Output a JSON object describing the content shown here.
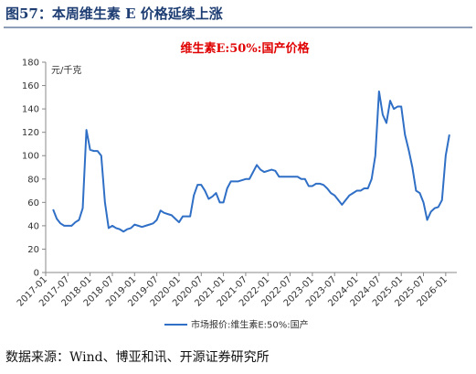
{
  "header": {
    "title": "图57：本周维生素 E 价格延续上涨"
  },
  "chart_data": {
    "type": "line",
    "title": "维生素E:50%:国产价格",
    "y_label": "元/千克",
    "x": [
      "2017-03",
      "2017-04",
      "2017-05",
      "2017-06",
      "2017-07",
      "2017-08",
      "2017-09",
      "2017-10",
      "2017-11",
      "2017-12",
      "2018-01",
      "2018-02",
      "2018-03",
      "2018-04",
      "2018-05",
      "2018-06",
      "2018-07",
      "2018-08",
      "2018-09",
      "2018-10",
      "2018-11",
      "2018-12",
      "2019-01",
      "2019-02",
      "2019-03",
      "2019-04",
      "2019-05",
      "2019-06",
      "2019-07",
      "2019-08",
      "2019-09",
      "2019-10",
      "2019-11",
      "2019-12",
      "2020-01",
      "2020-02",
      "2020-03",
      "2020-04",
      "2020-05",
      "2020-06",
      "2020-07",
      "2020-08",
      "2020-09",
      "2020-10",
      "2020-11",
      "2020-12",
      "2021-01",
      "2021-02",
      "2021-03",
      "2021-04",
      "2021-05",
      "2021-06",
      "2021-07",
      "2021-08",
      "2021-09",
      "2021-10",
      "2021-11",
      "2021-12",
      "2022-01",
      "2022-02",
      "2022-03",
      "2022-04",
      "2022-05",
      "2022-06",
      "2022-07",
      "2022-08",
      "2022-09",
      "2022-10",
      "2022-11",
      "2022-12",
      "2023-01",
      "2023-02",
      "2023-03",
      "2023-04",
      "2023-05",
      "2023-06",
      "2023-07",
      "2023-08",
      "2023-09",
      "2023-10",
      "2023-11",
      "2023-12",
      "2024-01",
      "2024-02",
      "2024-03",
      "2024-04",
      "2024-05",
      "2024-06",
      "2024-07",
      "2024-08",
      "2024-09",
      "2024-10",
      "2024-11",
      "2024-12",
      "2025-01",
      "2025-02",
      "2025-03",
      "2025-04",
      "2025-05",
      "2025-06",
      "2025-07",
      "2025-08",
      "2025-09",
      "2025-10",
      "2025-11",
      "2025-12",
      "2026-01",
      "2026-02"
    ],
    "series": [
      {
        "name": "市场报价:维生素E:50%:国产",
        "color": "#2f6fc6",
        "values": [
          54,
          46,
          42,
          40,
          40,
          40,
          43,
          45,
          55,
          122,
          105,
          104,
          104,
          100,
          60,
          38,
          40,
          38,
          37,
          35,
          37,
          38,
          41,
          40,
          39,
          40,
          41,
          42,
          45,
          53,
          51,
          50,
          49,
          46,
          43,
          48,
          48,
          48,
          66,
          75,
          75,
          70,
          63,
          65,
          68,
          60,
          60,
          72,
          78,
          78,
          78,
          79,
          80,
          80,
          86,
          92,
          88,
          86,
          87,
          88,
          87,
          82,
          82,
          82,
          82,
          82,
          82,
          80,
          80,
          74,
          74,
          76,
          76,
          75,
          72,
          68,
          66,
          62,
          58,
          62,
          66,
          68,
          70,
          70,
          72,
          72,
          80,
          100,
          155,
          135,
          128,
          147,
          140,
          142,
          142,
          118,
          105,
          90,
          70,
          68,
          60,
          45,
          52,
          55,
          56,
          62,
          100,
          118
        ]
      }
    ],
    "xlim": [
      "2017-01",
      "2026-04"
    ],
    "xticks": [
      "2017-01",
      "2017-07",
      "2018-01",
      "2018-07",
      "2019-01",
      "2019-07",
      "2020-01",
      "2020-07",
      "2021-01",
      "2021-07",
      "2022-01",
      "2022-07",
      "2023-01",
      "2023-07",
      "2024-01",
      "2024-07",
      "2025-01",
      "2025-07",
      "2026-01"
    ],
    "ylim": [
      0,
      180
    ],
    "yticks": [
      0,
      20,
      40,
      60,
      80,
      100,
      120,
      140,
      160,
      180
    ]
  },
  "footer": {
    "source": "数据来源：Wind、博亚和讯、开源证券研究所"
  }
}
